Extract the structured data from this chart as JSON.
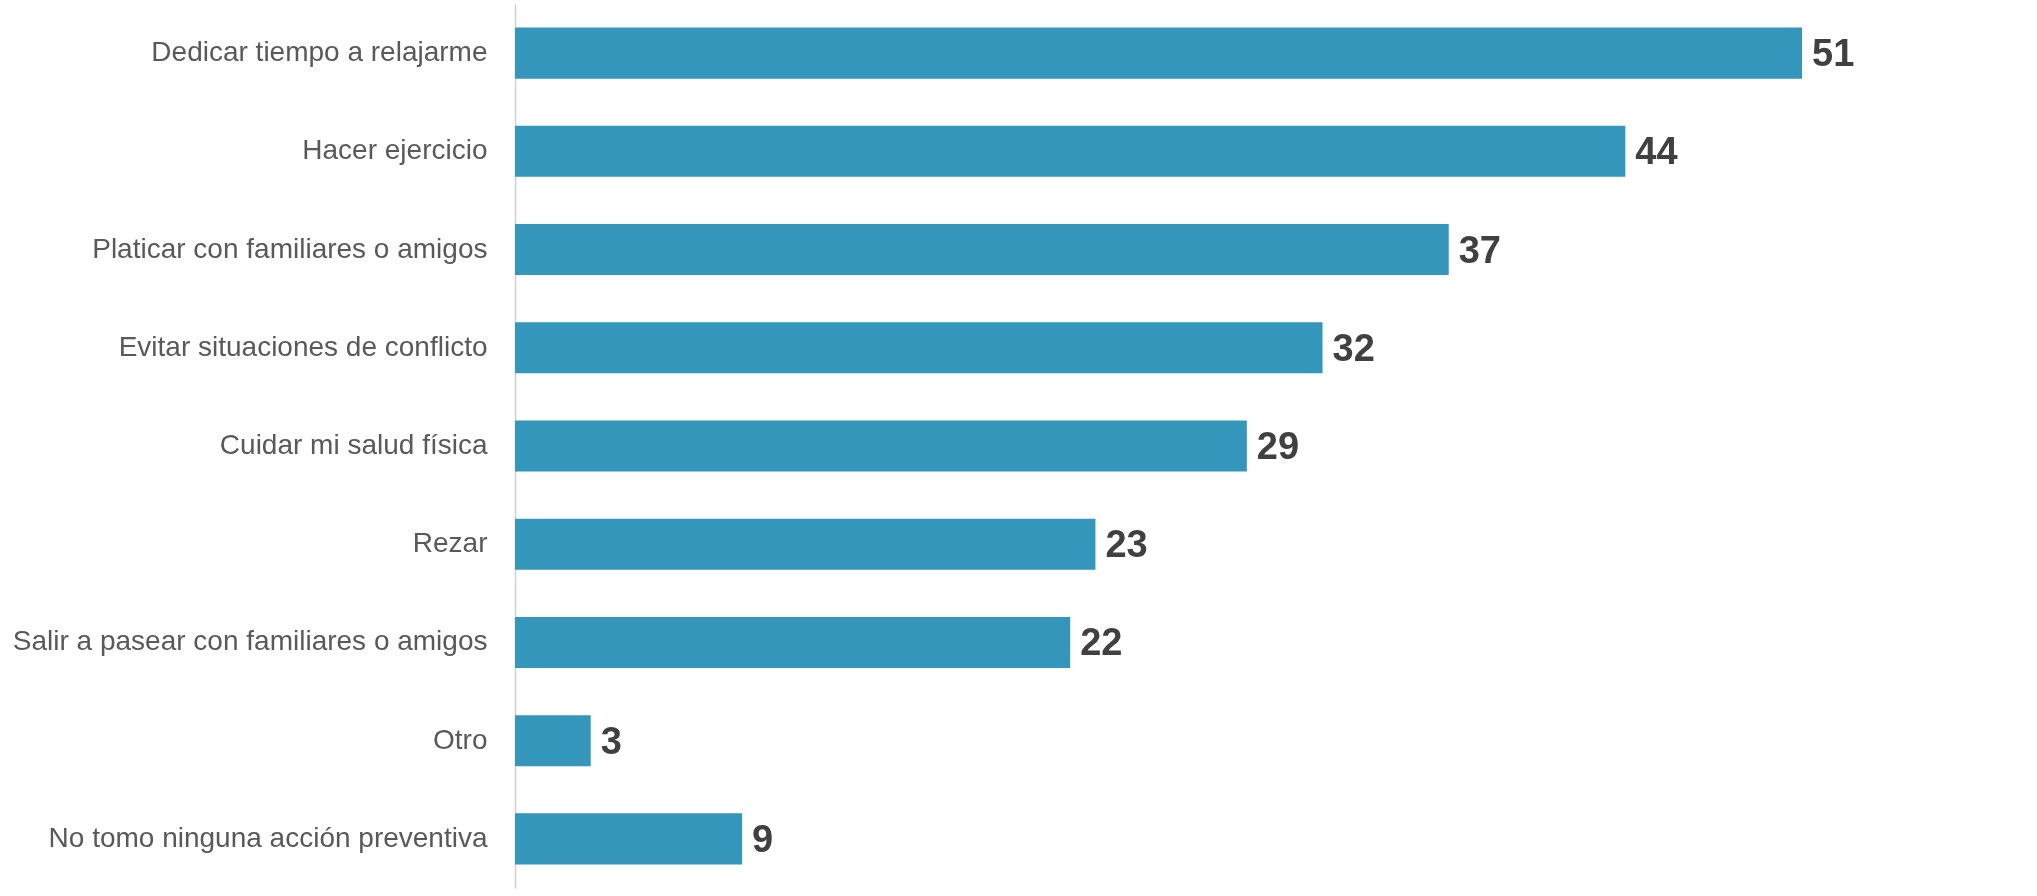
{
  "chart_data": {
    "type": "bar",
    "orientation": "horizontal",
    "categories": [
      "Dedicar tiempo a relajarme",
      "Hacer ejercicio",
      "Platicar con familiares o amigos",
      "Evitar situaciones de conflicto",
      "Cuidar mi salud física",
      "Rezar",
      "Salir a pasear con familiares o amigos",
      "Otro",
      "No tomo ninguna acción preventiva"
    ],
    "values": [
      51,
      44,
      37,
      32,
      29,
      23,
      22,
      3,
      9
    ],
    "color": "#3596bb",
    "data_labels": true
  }
}
